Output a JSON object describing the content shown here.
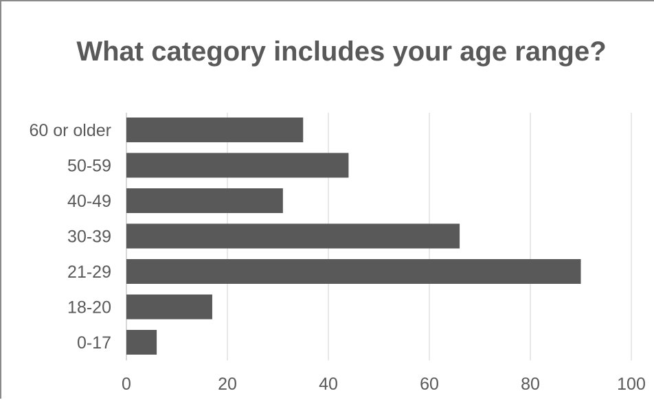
{
  "chart_data": {
    "type": "bar",
    "orientation": "horizontal",
    "title": "What category includes your age range?",
    "xlabel": "",
    "ylabel": "",
    "categories": [
      "60 or older",
      "50-59",
      "40-49",
      "30-39",
      "21-29",
      "18-20",
      "0-17"
    ],
    "values": [
      35,
      44,
      31,
      66,
      90,
      17,
      6
    ],
    "xlim": [
      0,
      100
    ],
    "xticks": [
      0,
      20,
      40,
      60,
      80,
      100
    ],
    "grid": "vertical",
    "legend": "none",
    "bar_color": "#595959",
    "grid_color": "#d9d9d9",
    "text_color": "#595959"
  }
}
